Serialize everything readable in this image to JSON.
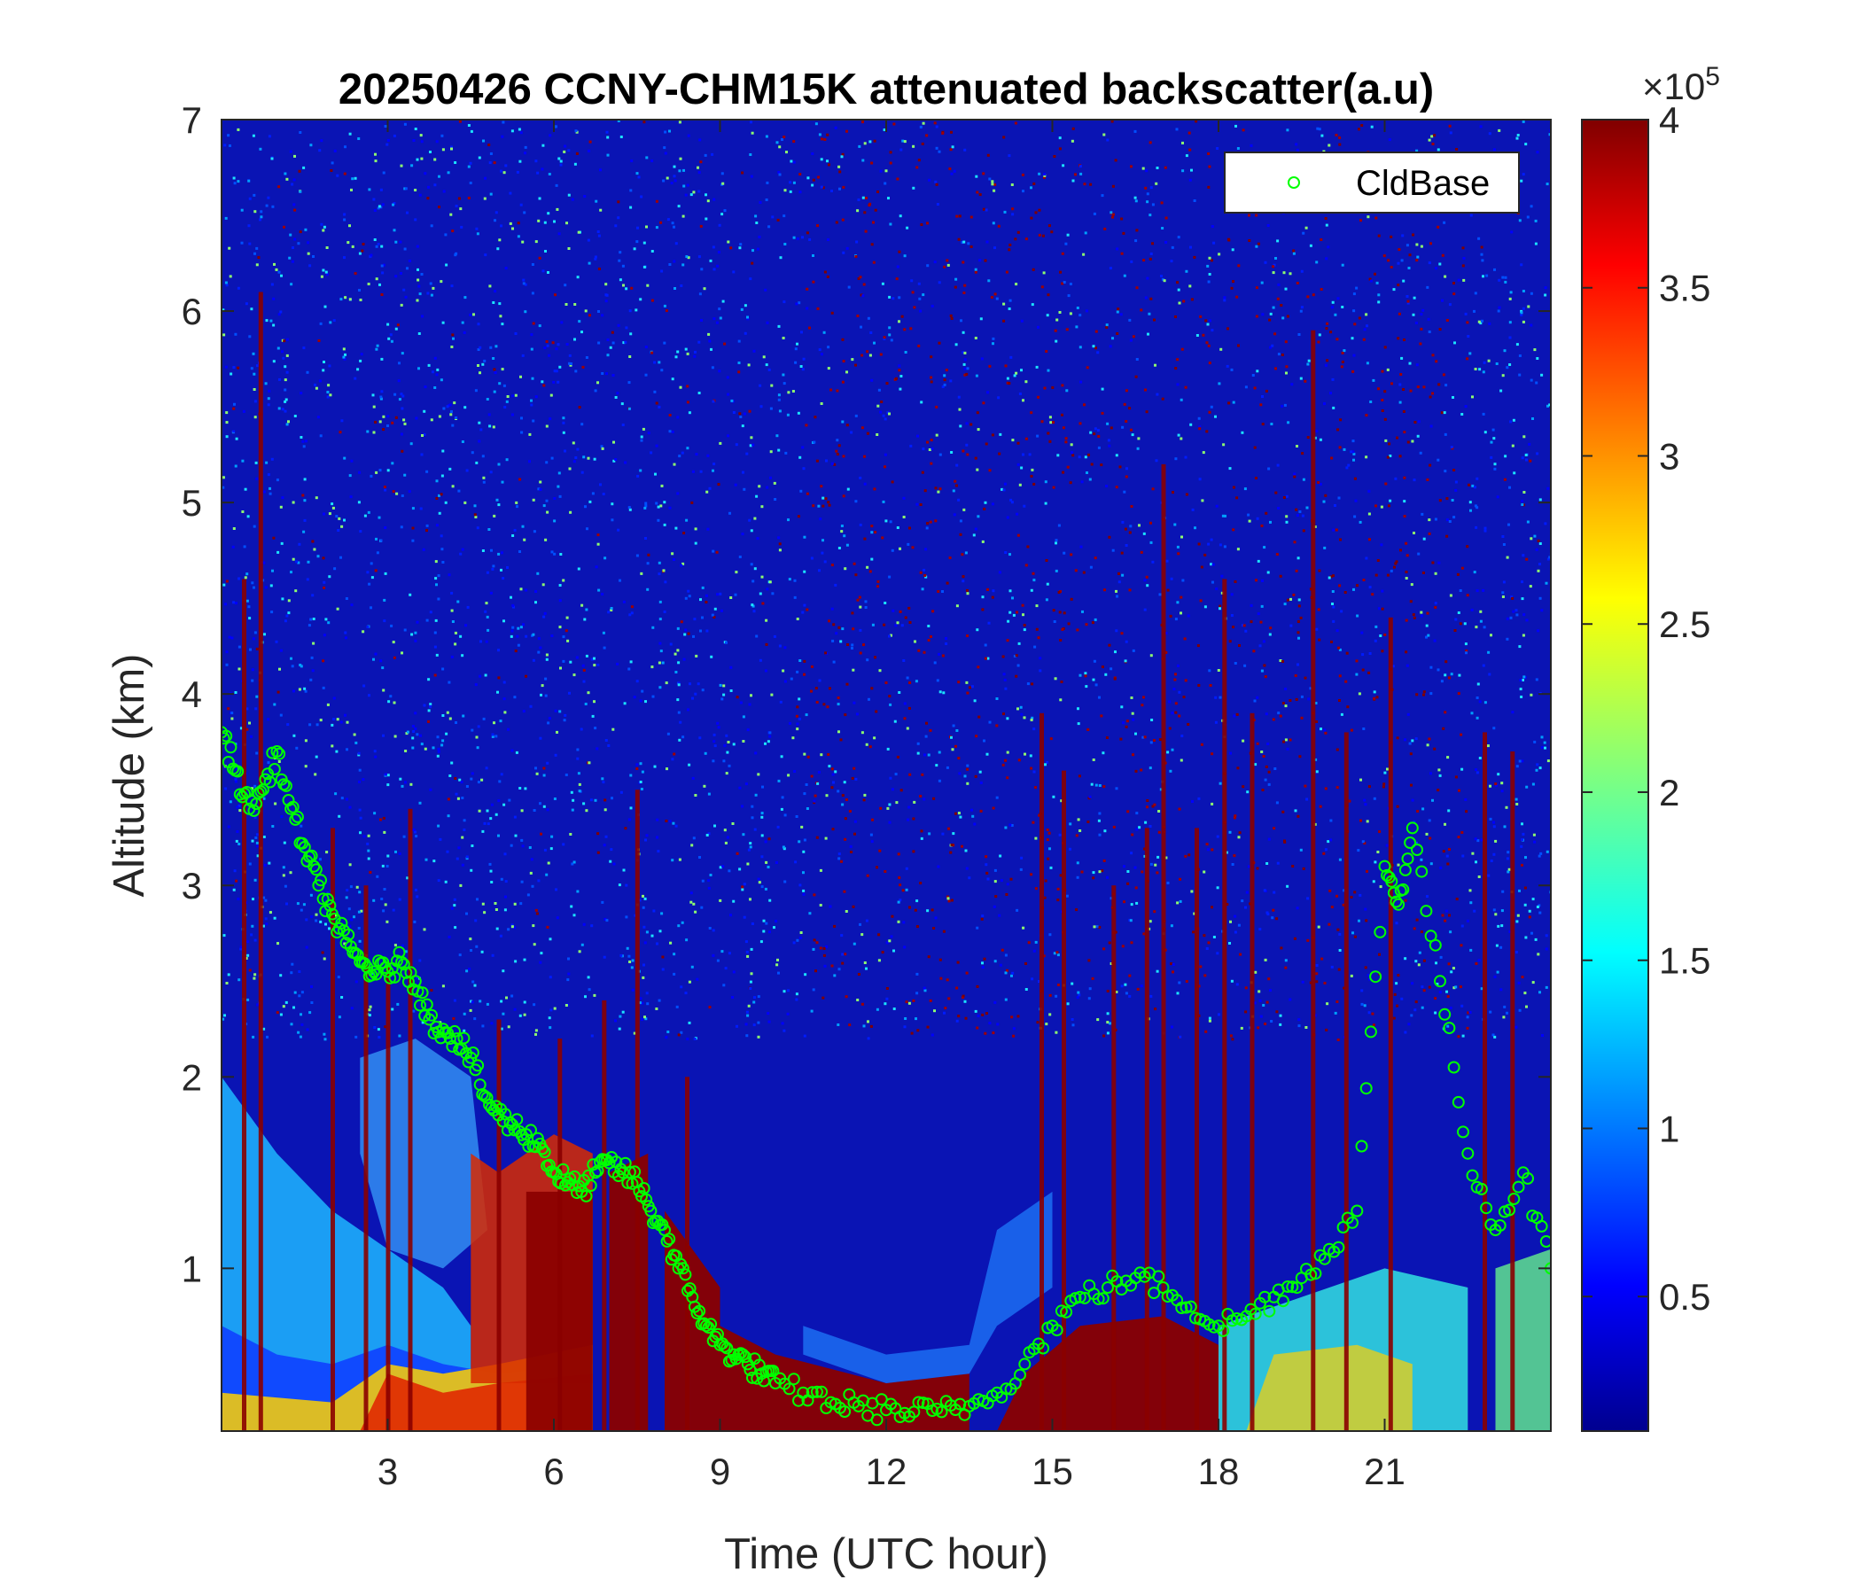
{
  "chart_data": {
    "type": "heatmap",
    "title": "20250426 CCNY-CHM15K attenuated backscatter(a.u)",
    "xlabel": "Time (UTC hour)",
    "ylabel": "Altitude (km)",
    "xlim": [
      0,
      24
    ],
    "ylim": [
      0.15,
      7
    ],
    "xticks": [
      "3",
      "6",
      "9",
      "12",
      "15",
      "18",
      "21"
    ],
    "yticks": [
      "1",
      "2",
      "3",
      "4",
      "5",
      "6",
      "7"
    ],
    "colorbar": {
      "colormap": "jet",
      "clim": [
        0.1,
        4
      ],
      "ticks": [
        "0.5",
        "1",
        "1.5",
        "2",
        "2.5",
        "3",
        "3.5",
        "4"
      ],
      "exponent_label": "×10",
      "exponent_power": "5"
    },
    "legend": {
      "location": "top-right",
      "entries": [
        "CldBase"
      ]
    },
    "marker_color": "#00ff00",
    "cloud_base": {
      "name": "CldBase",
      "x": [
        0.0,
        0.25,
        0.5,
        0.75,
        1.0,
        1.25,
        1.5,
        1.75,
        2.0,
        2.25,
        2.5,
        2.75,
        3.0,
        3.25,
        3.5,
        3.75,
        4.0,
        4.25,
        4.5,
        4.75,
        5.0,
        5.25,
        5.5,
        5.75,
        6.0,
        6.25,
        6.5,
        6.75,
        7.0,
        7.25,
        7.5,
        7.75,
        8.0,
        8.25,
        8.5,
        8.75,
        9.0,
        9.25,
        9.5,
        9.75,
        10.0,
        10.5,
        11.0,
        11.5,
        12.0,
        12.5,
        13.0,
        13.5,
        14.0,
        14.5,
        15.0,
        15.5,
        16.0,
        16.5,
        17.0,
        17.5,
        18.0,
        18.5,
        19.0,
        19.5,
        20.0,
        20.5,
        21.0,
        21.25,
        21.5,
        22.0,
        22.5,
        23.0,
        23.5,
        24.0
      ],
      "y": [
        3.8,
        3.6,
        3.4,
        3.5,
        3.7,
        3.4,
        3.2,
        3.0,
        2.85,
        2.7,
        2.6,
        2.55,
        2.55,
        2.6,
        2.5,
        2.3,
        2.25,
        2.2,
        2.1,
        1.9,
        1.8,
        1.75,
        1.7,
        1.65,
        1.5,
        1.45,
        1.4,
        1.5,
        1.55,
        1.5,
        1.45,
        1.3,
        1.2,
        1.0,
        0.85,
        0.7,
        0.6,
        0.55,
        0.5,
        0.45,
        0.4,
        0.35,
        0.3,
        0.28,
        0.26,
        0.25,
        0.25,
        0.28,
        0.35,
        0.5,
        0.7,
        0.85,
        0.9,
        0.95,
        0.9,
        0.8,
        0.7,
        0.75,
        0.85,
        0.95,
        1.1,
        1.3,
        3.1,
        2.9,
        3.3,
        2.5,
        1.6,
        1.2,
        1.5,
        1.0
      ]
    }
  }
}
